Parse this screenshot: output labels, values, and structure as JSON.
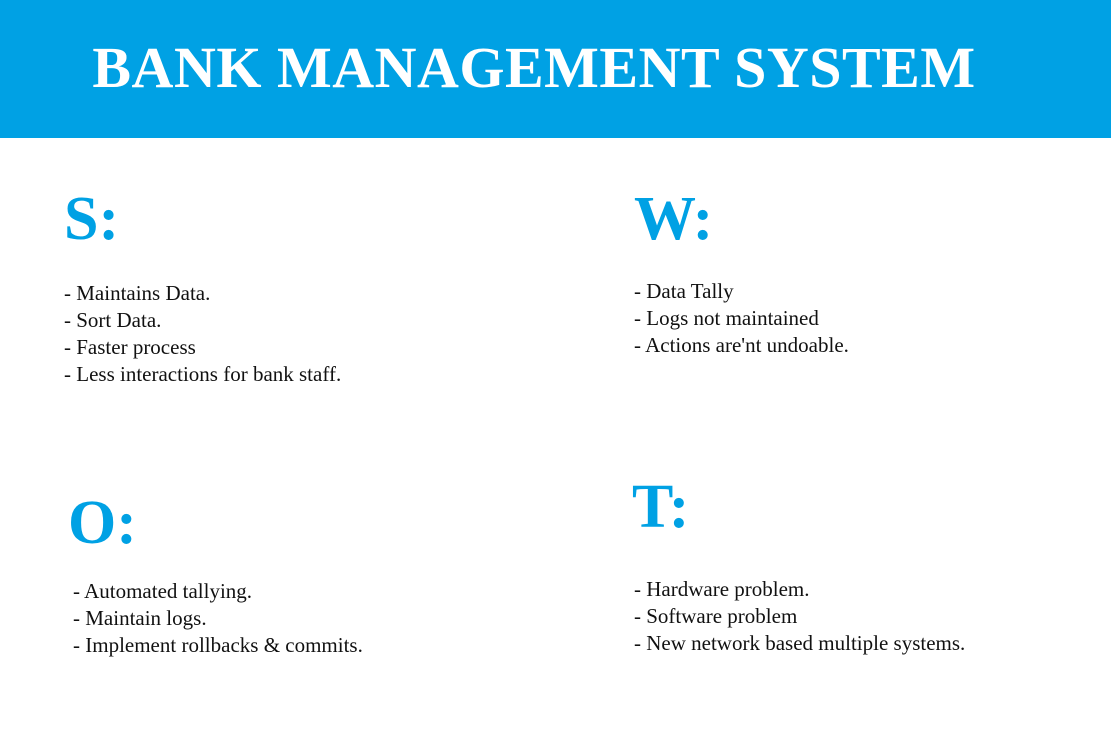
{
  "header": {
    "title": "BANK MANAGEMENT SYSTEM",
    "background_color": "#00a1e4"
  },
  "accent_color": "#00a1e4",
  "swot": {
    "strengths": {
      "heading": "S:",
      "items": [
        "- Maintains Data.",
        "- Sort Data.",
        "- Faster process",
        "- Less interactions for bank staff."
      ]
    },
    "weaknesses": {
      "heading": "W:",
      "items": [
        "- Data Tally",
        "- Logs not maintained",
        "- Actions are'nt undoable."
      ]
    },
    "opportunities": {
      "heading": "O:",
      "items": [
        "- Automated tallying.",
        "- Maintain logs.",
        "- Implement rollbacks & commits."
      ]
    },
    "threats": {
      "heading": "T:",
      "items": [
        "- Hardware problem.",
        "- Software problem",
        "- New network based multiple systems."
      ]
    }
  }
}
